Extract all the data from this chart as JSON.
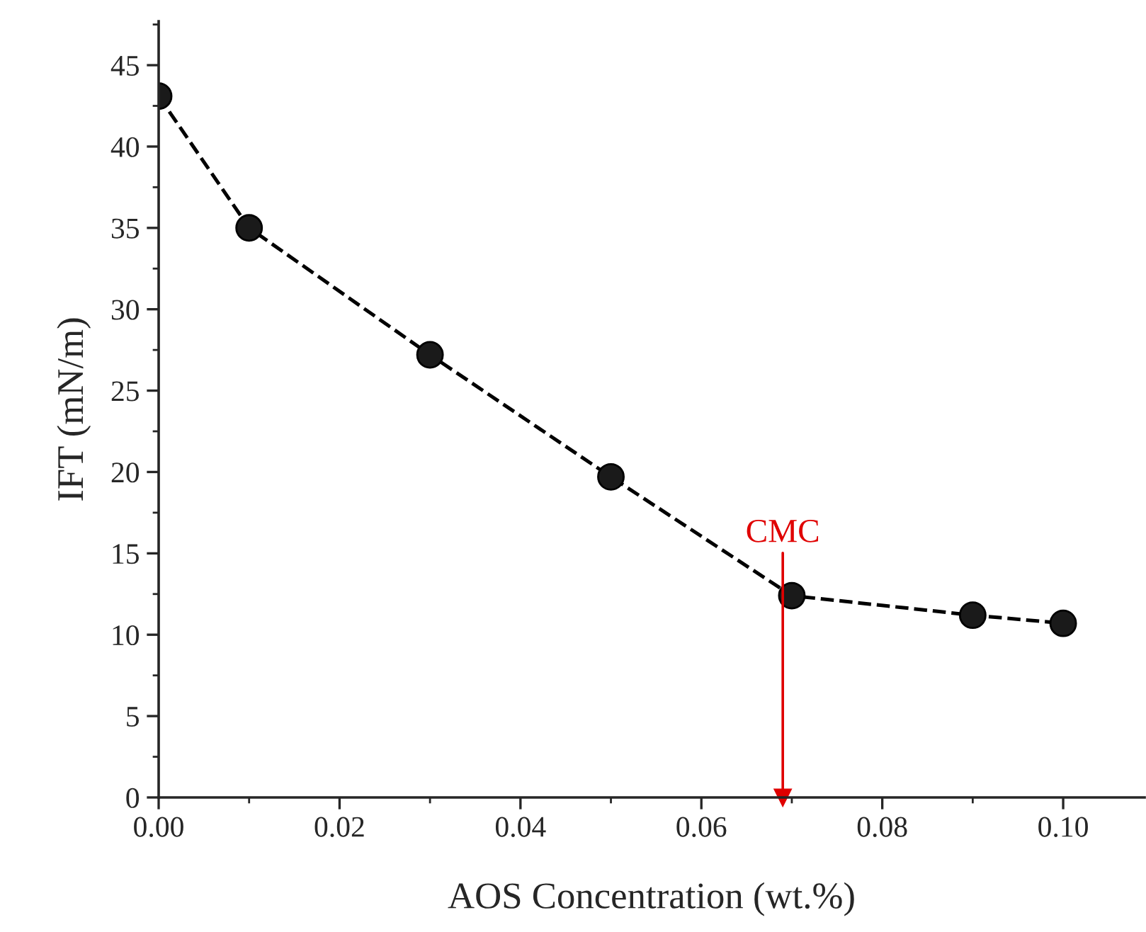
{
  "chart_data": {
    "type": "line",
    "xlabel": "AOS Concentration (wt.%)",
    "ylabel": "IFT (mN/m)",
    "x": [
      0.0,
      0.01,
      0.03,
      0.05,
      0.07,
      0.09,
      0.1
    ],
    "series": [
      {
        "color": "#000000",
        "values": [
          43.1,
          35.0,
          27.2,
          19.7,
          12.4,
          11.2,
          10.7
        ]
      }
    ],
    "marker": "circle",
    "line_style": "dashed",
    "grid": false,
    "legend": false,
    "xlim": [
      0.0,
      0.109
    ],
    "xticks": [
      {
        "value": 0.0,
        "label": "0.00"
      },
      {
        "value": 0.02,
        "label": "0.02"
      },
      {
        "value": 0.04,
        "label": "0.04"
      },
      {
        "value": 0.06,
        "label": "0.06"
      },
      {
        "value": 0.08,
        "label": "0.08"
      },
      {
        "value": 0.1,
        "label": "0.10"
      }
    ],
    "ylim": [
      0,
      47.7
    ],
    "yticks": [
      0,
      5,
      10,
      15,
      20,
      25,
      30,
      35,
      40,
      45
    ],
    "ref_lines": [
      {
        "axis": "x",
        "value": 0.069,
        "label": "CMC",
        "color": "#e00000"
      }
    ]
  }
}
